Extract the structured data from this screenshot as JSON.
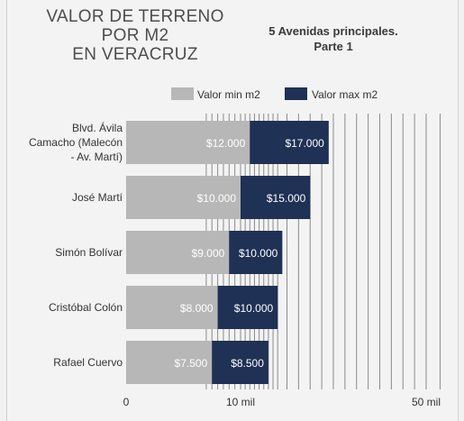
{
  "title_lines": [
    "VALOR DE TERRENO",
    "POR M2",
    "EN VERACRUZ"
  ],
  "subtitle_lines": [
    "5 Avenidas principales.",
    "Parte 1"
  ],
  "chart_data": {
    "type": "bar",
    "orientation": "horizontal",
    "stacked": true,
    "categories": [
      [
        "Blvd. Ávila",
        "Camacho (Malecón",
        "- Av. Martí)"
      ],
      [
        "José Martí"
      ],
      [
        "Simón Bolívar"
      ],
      [
        "Cristóbal Colón"
      ],
      [
        "Rafael Cuervo"
      ]
    ],
    "series": [
      {
        "name": "Valor min m2",
        "color": "#b7b7b7",
        "values": [
          12000,
          10000,
          9000,
          8000,
          7500
        ],
        "labels": [
          "$12.000",
          "$10.000",
          "$9.000",
          "$8.000",
          "$7.500"
        ]
      },
      {
        "name": "Valor max m2",
        "color": "#1f3154",
        "values": [
          17000,
          15000,
          10000,
          10000,
          8500
        ],
        "labels": [
          "$17.000",
          "$15.000",
          "$10.000",
          "$10.000",
          "$8.500"
        ]
      }
    ],
    "xlim": [
      0,
      50000
    ],
    "xticks": [
      {
        "value": 0,
        "label": "0"
      },
      {
        "value": 10000,
        "label": "10 mil"
      },
      {
        "value": 50000,
        "label": "50 mil"
      }
    ],
    "legend_position": "top-right",
    "grid": "vertical, unevenly spaced lines"
  }
}
